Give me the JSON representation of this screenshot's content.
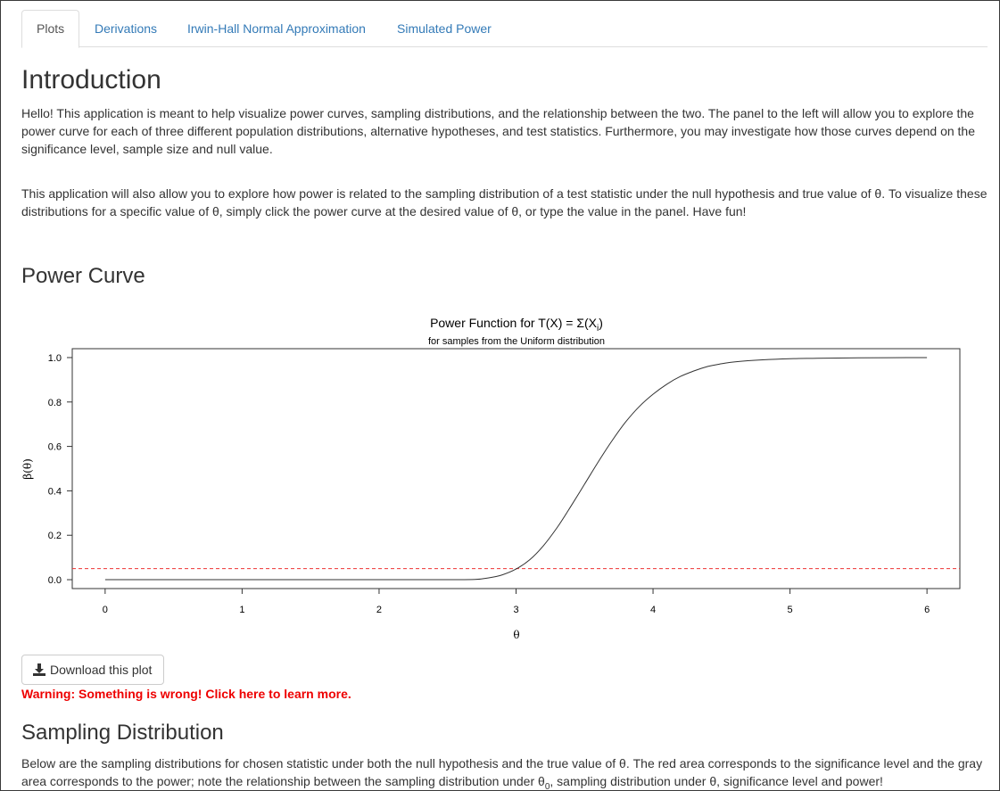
{
  "tabs": [
    {
      "label": "Plots",
      "active": true
    },
    {
      "label": "Derivations",
      "active": false
    },
    {
      "label": "Irwin-Hall Normal Approximation",
      "active": false
    },
    {
      "label": "Simulated Power",
      "active": false
    }
  ],
  "intro": {
    "heading": "Introduction",
    "paragraph1": "Hello! This application is meant to help visualize power curves, sampling distributions, and the relationship between the two. The panel to the left will allow you to explore the power curve for each of three different population distributions, alternative hypotheses, and test statistics. Furthermore, you may investigate how those curves depend on the significance level, sample size and null value.",
    "paragraph2": "This application will also allow you to explore how power is related to the sampling distribution of a test statistic under the null hypothesis and true value of θ. To visualize these distributions for a specific value of θ, simply click the power curve at the desired value of θ, or type the value in the panel. Have fun!"
  },
  "power_curve": {
    "heading": "Power Curve",
    "download_label": "Download this plot",
    "warning": "Warning: Something is wrong! Click here to learn more."
  },
  "sampling": {
    "heading": "Sampling Distribution",
    "paragraph_part1": "Below are the sampling distributions for chosen statistic under both the null hypothesis and the true value of θ. The red area corresponds to the significance level and the gray area corresponds to the power; note the relationship between the sampling distribution under θ",
    "subscript": "0",
    "paragraph_part2": ", sampling distribution under θ, significance level and power!"
  },
  "chart_data": {
    "type": "line",
    "title_prefix": "Power Function for T(X) = Σ(X",
    "title_subscript": "i",
    "title_suffix": ")",
    "subtitle": "for samples from the Uniform distribution",
    "xlabel": "θ",
    "ylabel": "β(θ)",
    "xlim": [
      -0.24,
      6.24
    ],
    "ylim": [
      -0.04,
      1.04
    ],
    "x_ticks": [
      "0",
      "1",
      "2",
      "3",
      "4",
      "5",
      "6"
    ],
    "y_ticks": [
      "0.0",
      "0.2",
      "0.4",
      "0.6",
      "0.8",
      "1.0"
    ],
    "series": [
      {
        "color": "#333333",
        "x": [
          0,
          0.5,
          1,
          1.5,
          2,
          2.5,
          2.7,
          2.8,
          2.9,
          3.0,
          3.1,
          3.2,
          3.3,
          3.4,
          3.5,
          3.6,
          3.7,
          3.8,
          3.9,
          4.0,
          4.1,
          4.2,
          4.3,
          4.4,
          4.5,
          4.6,
          4.8,
          5.0,
          5.2,
          5.5,
          6.0
        ],
        "y": [
          0,
          0,
          0,
          0,
          0,
          0,
          0.001,
          0.008,
          0.022,
          0.048,
          0.09,
          0.153,
          0.235,
          0.33,
          0.43,
          0.53,
          0.625,
          0.71,
          0.78,
          0.835,
          0.88,
          0.915,
          0.94,
          0.96,
          0.972,
          0.981,
          0.99,
          0.995,
          0.997,
          0.999,
          1.0
        ]
      }
    ],
    "reference_line": {
      "y": 0.05,
      "color": "#ee3333",
      "style": "dashed"
    }
  }
}
